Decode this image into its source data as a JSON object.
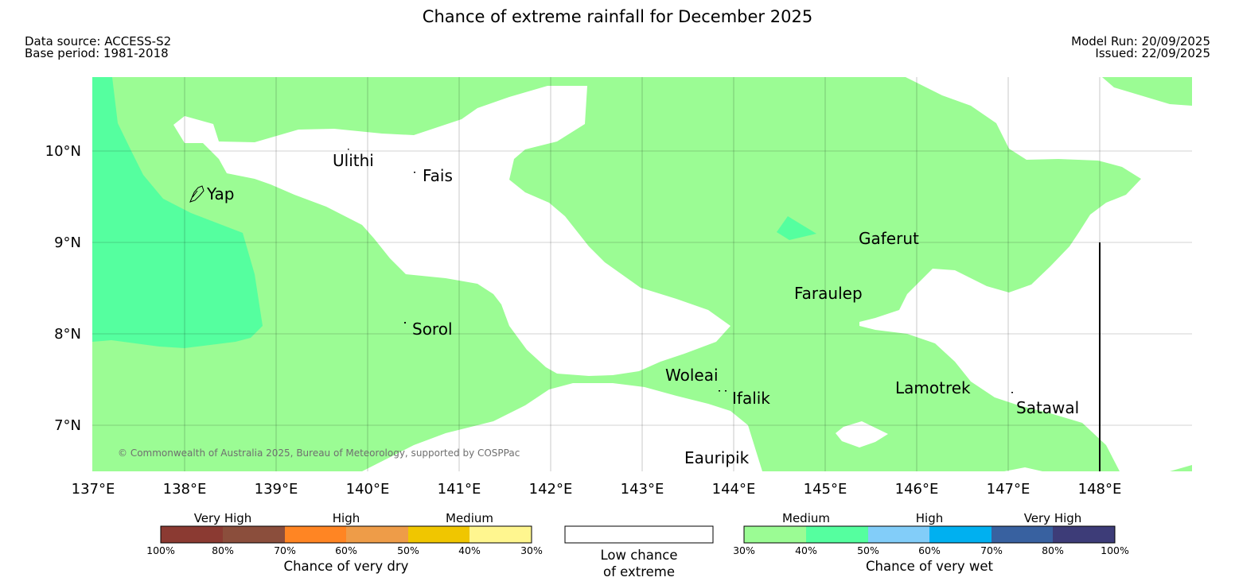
{
  "title": "Chance of extreme rainfall for December 2025",
  "data_source": "Data source: ACCESS-S2",
  "base_period": "Base period: 1981-2018",
  "model_run": "Model Run: 20/09/2025",
  "issued": "Issued: 22/09/2025",
  "copyright": "© Commonwealth of Australia 2025, Bureau of Meteorology, supported by COSPPac",
  "map": {
    "lon_range": [
      137,
      149
    ],
    "lat_range": [
      6.5,
      10.8
    ],
    "lon_ticks": [
      "137°E",
      "138°E",
      "139°E",
      "140°E",
      "141°E",
      "142°E",
      "143°E",
      "144°E",
      "145°E",
      "146°E",
      "147°E",
      "148°E"
    ],
    "lat_ticks": [
      "10°N",
      "9°N",
      "8°N",
      "7°N"
    ],
    "places": [
      "Ulithi",
      "Fais",
      "Yap",
      "Gaferut",
      "Faraulep",
      "Sorol",
      "Woleai",
      "Ifalik",
      "Lamotrek",
      "Satawal",
      "Eauripik"
    ]
  },
  "legend": {
    "dry": {
      "categories": [
        "Very High",
        "High",
        "Medium"
      ],
      "ticks": [
        "100%",
        "80%",
        "70%",
        "60%",
        "50%",
        "40%",
        "30%"
      ],
      "colors": [
        "#8b3a32",
        "#8b4e3c",
        "#ff8523",
        "#ee9c48",
        "#f0c600",
        "#fff68f"
      ],
      "label": "Chance of very dry"
    },
    "low": {
      "line1": "Low chance",
      "line2": "of extreme",
      "color": "#ffffff"
    },
    "wet": {
      "categories": [
        "Medium",
        "High",
        "Very High"
      ],
      "ticks": [
        "30%",
        "40%",
        "50%",
        "60%",
        "70%",
        "80%",
        "100%"
      ],
      "colors": [
        "#9bfc94",
        "#55ff9f",
        "#82cdf9",
        "#00b0f0",
        "#3861a0",
        "#3d3c78"
      ],
      "label": "Chance of very wet"
    }
  }
}
